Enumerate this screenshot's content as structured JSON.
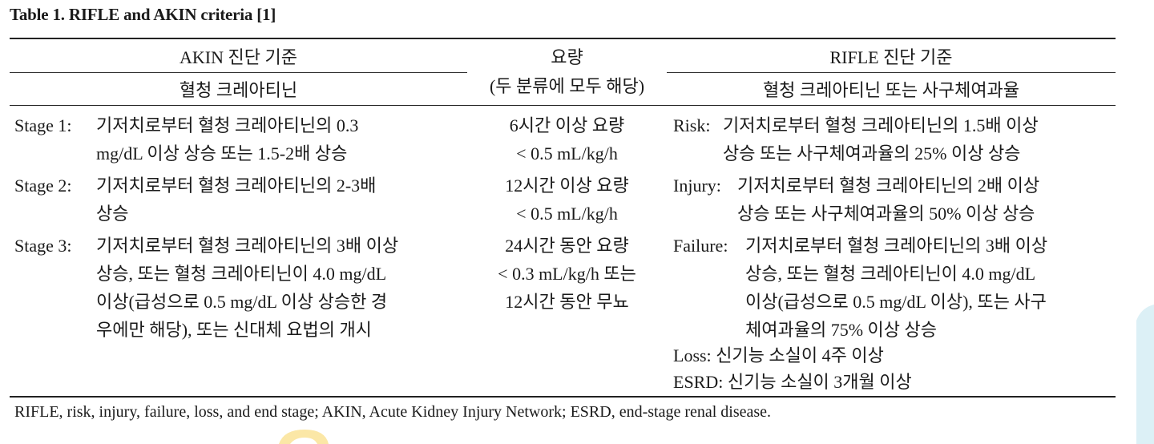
{
  "table": {
    "title": "Table 1. RIFLE and AKIN criteria [1]",
    "headers": {
      "akin": "AKIN 진단 기준",
      "akin_sub": "혈청 크레아티닌",
      "urine_line1": "요량",
      "urine_line2": "(두 분류에 모두 해당)",
      "rifle": "RIFLE 진단 기준",
      "rifle_sub": "혈청 크레아티닌 또는 사구체여과율"
    },
    "akin_rows": [
      {
        "label": "Stage 1:",
        "lines": [
          "기저치로부터 혈청 크레아티닌의 0.3",
          "mg/dL 이상 상승 또는 1.5-2배 상승"
        ]
      },
      {
        "label": "Stage 2:",
        "lines": [
          "기저치로부터 혈청 크레아티닌의 2-3배",
          "상승"
        ]
      },
      {
        "label": "Stage 3:",
        "lines": [
          "기저치로부터 혈청 크레아티닌의 3배 이상",
          "상승, 또는 혈청 크레아티닌이 4.0 mg/dL",
          "이상(급성으로 0.5 mg/dL 이상 상승한 경",
          "우에만 해당), 또는 신대체 요법의 개시"
        ]
      }
    ],
    "urine_rows": [
      {
        "lines": [
          "6시간 이상 요량",
          "< 0.5 mL/kg/h"
        ]
      },
      {
        "lines": [
          "12시간 이상 요량",
          "< 0.5 mL/kg/h"
        ]
      },
      {
        "lines": [
          "24시간 동안 요량",
          "< 0.3 mL/kg/h 또는",
          "12시간 동안 무뇨"
        ]
      }
    ],
    "rifle_rows": [
      {
        "label": "Risk:",
        "lines": [
          "기저치로부터 혈청 크레아티닌의 1.5배 이상",
          "상승 또는 사구체여과율의 25% 이상 상승"
        ]
      },
      {
        "label": "Injury:",
        "lines": [
          "기저치로부터 혈청 크레아티닌의 2배 이상",
          "상승 또는 사구체여과율의 50% 이상 상승"
        ]
      },
      {
        "label": "Failure:",
        "lines": [
          "기저치로부터 혈청 크레아티닌의 3배 이상",
          "상승, 또는 혈청 크레아티닌이 4.0 mg/dL",
          "이상(급성으로 0.5 mg/dL 이상), 또는 사구",
          "체여과율의 75% 이상 상승"
        ]
      },
      {
        "label": "Loss:",
        "lines": [
          "신기능 소실이 4주 이상"
        ]
      },
      {
        "label": "ESRD:",
        "lines": [
          "신기능 소실이 3개월 이상"
        ]
      }
    ],
    "footnote": "RIFLE, risk, injury, failure, loss, and end stage; AKIN, Acute Kidney Injury Network; ESRD, end-stage renal disease."
  },
  "colors": {
    "text": "#1a1a1a",
    "rule": "#222222",
    "accent_blue": "#dcf0f6",
    "accent_yellow": "#fbe7a6"
  }
}
